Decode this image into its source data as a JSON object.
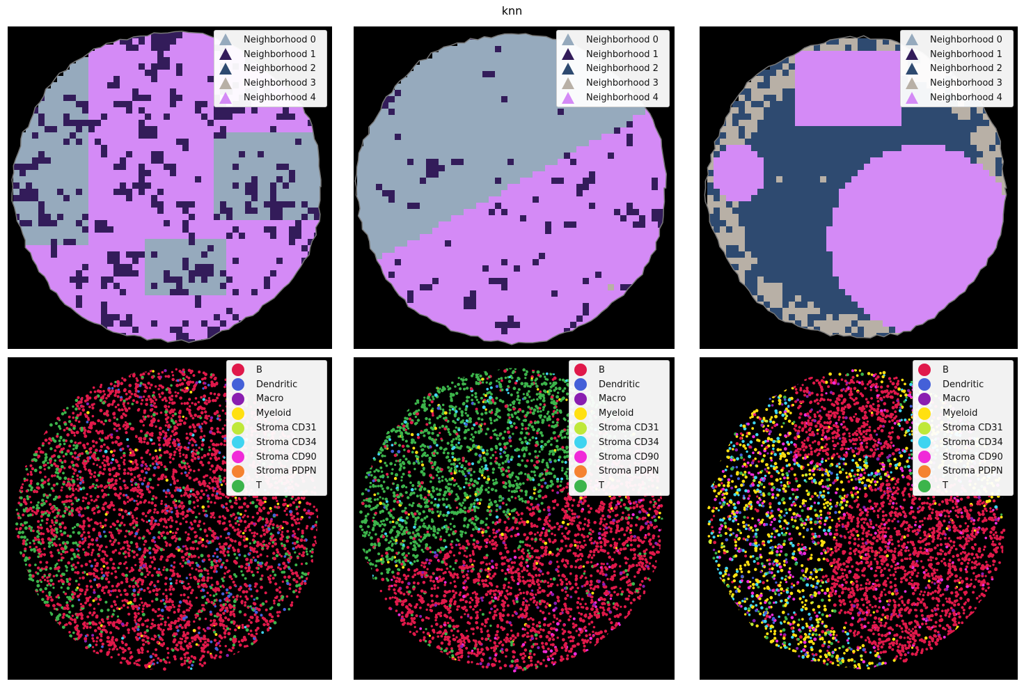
{
  "figure": {
    "title": "knn"
  },
  "neighborhood_legend": [
    {
      "label": "Neighborhood 0",
      "color": "#96aabd"
    },
    {
      "label": "Neighborhood 1",
      "color": "#331c5a"
    },
    {
      "label": "Neighborhood 2",
      "color": "#2e4a70"
    },
    {
      "label": "Neighborhood 3",
      "color": "#b8b0a6"
    },
    {
      "label": "Neighborhood 4",
      "color": "#d48af6"
    }
  ],
  "celltype_legend": [
    {
      "label": "B",
      "color": "#e0194a"
    },
    {
      "label": "Dendritic",
      "color": "#4460d8"
    },
    {
      "label": "Macro",
      "color": "#8a1eb0"
    },
    {
      "label": "Myeloid",
      "color": "#ffe011"
    },
    {
      "label": "Stroma CD31",
      "color": "#bfe83a"
    },
    {
      "label": "Stroma CD34",
      "color": "#3fd4f0"
    },
    {
      "label": "Stroma CD90",
      "color": "#f02ad8"
    },
    {
      "label": "Stroma PDPN",
      "color": "#f58231"
    },
    {
      "label": "T",
      "color": "#3cb44b"
    }
  ],
  "chart_data": [
    {
      "type": "heatmap",
      "panel": "neighborhood",
      "sample": 1,
      "background": "#000000",
      "categories": [
        "Neighborhood 0",
        "Neighborhood 1",
        "Neighborhood 2",
        "Neighborhood 3",
        "Neighborhood 4"
      ],
      "dominant": [
        "Neighborhood 4",
        "Neighborhood 1",
        "Neighborhood 0"
      ],
      "legend_loc": "upper right",
      "axes": "off"
    },
    {
      "type": "heatmap",
      "panel": "neighborhood",
      "sample": 2,
      "background": "#000000",
      "categories": [
        "Neighborhood 0",
        "Neighborhood 1",
        "Neighborhood 2",
        "Neighborhood 3",
        "Neighborhood 4"
      ],
      "dominant": [
        "Neighborhood 0",
        "Neighborhood 4",
        "Neighborhood 1",
        "Neighborhood 3"
      ],
      "legend_loc": "upper right",
      "axes": "off"
    },
    {
      "type": "heatmap",
      "panel": "neighborhood",
      "sample": 3,
      "background": "#000000",
      "categories": [
        "Neighborhood 0",
        "Neighborhood 1",
        "Neighborhood 2",
        "Neighborhood 3",
        "Neighborhood 4"
      ],
      "dominant": [
        "Neighborhood 2",
        "Neighborhood 4",
        "Neighborhood 3"
      ],
      "legend_loc": "upper right",
      "axes": "off"
    },
    {
      "type": "scatter",
      "panel": "cell_type",
      "sample": 1,
      "background": "#000000",
      "categories": [
        "B",
        "Dendritic",
        "Macro",
        "Myeloid",
        "Stroma CD31",
        "Stroma CD34",
        "Stroma CD90",
        "Stroma PDPN",
        "T"
      ],
      "dominant": [
        "B",
        "T",
        "Dendritic"
      ],
      "legend_loc": "upper right",
      "axes": "off"
    },
    {
      "type": "scatter",
      "panel": "cell_type",
      "sample": 2,
      "background": "#000000",
      "categories": [
        "B",
        "Dendritic",
        "Macro",
        "Myeloid",
        "Stroma CD31",
        "Stroma CD34",
        "Stroma CD90",
        "Stroma PDPN",
        "T"
      ],
      "dominant": [
        "B",
        "T",
        "Stroma CD90"
      ],
      "legend_loc": "upper right",
      "axes": "off"
    },
    {
      "type": "scatter",
      "panel": "cell_type",
      "sample": 3,
      "background": "#000000",
      "categories": [
        "B",
        "Dendritic",
        "Macro",
        "Myeloid",
        "Stroma CD31",
        "Stroma CD34",
        "Stroma CD90",
        "Stroma PDPN",
        "T"
      ],
      "dominant": [
        "B",
        "Myeloid",
        "Stroma CD34",
        "Stroma CD90"
      ],
      "legend_loc": "upper right",
      "axes": "off"
    }
  ]
}
